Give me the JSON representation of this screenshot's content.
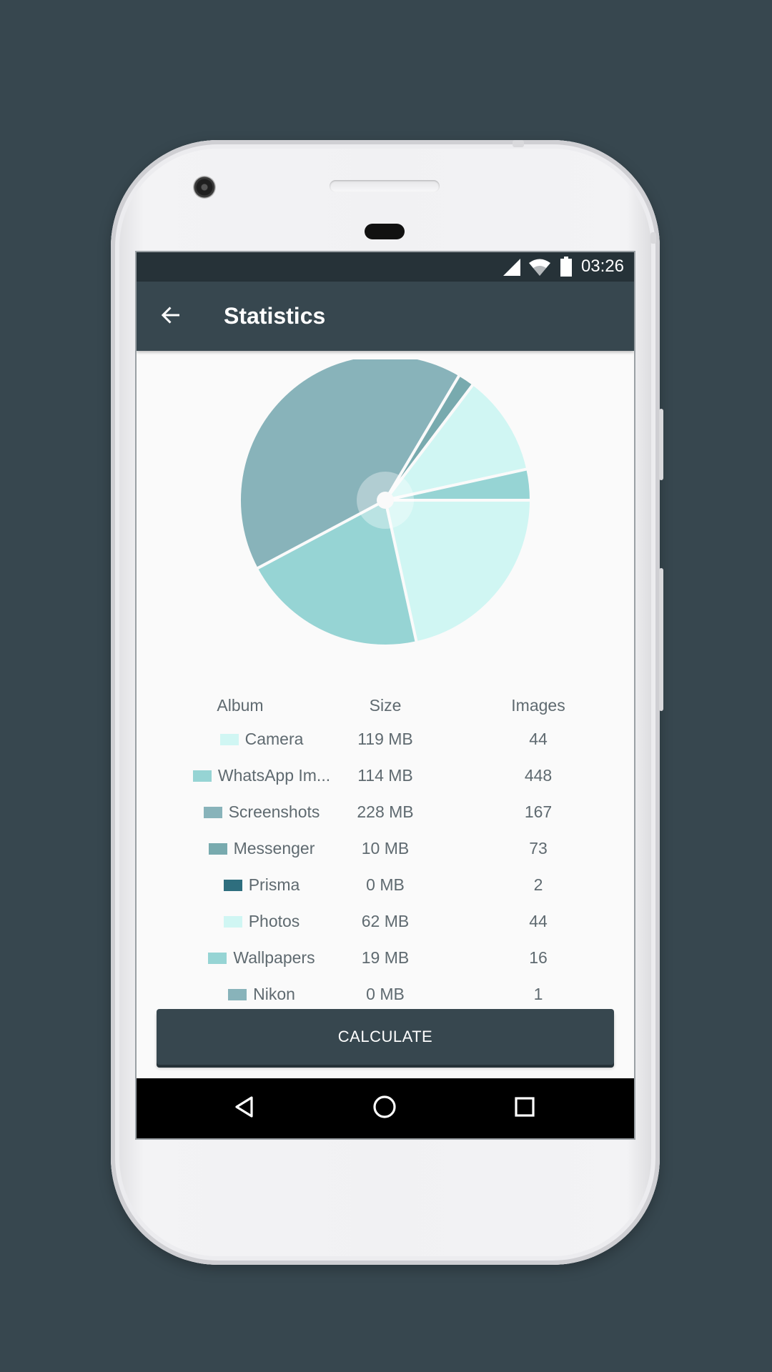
{
  "status_bar": {
    "time": "03:26",
    "icons": [
      "signal-icon",
      "wifi-icon",
      "battery-icon"
    ]
  },
  "app_bar": {
    "title": "Statistics",
    "back_icon": "arrow-back-icon"
  },
  "colors": {
    "background": "#37474f",
    "app_bar": "#37474f",
    "status_bar": "#263238",
    "button": "#37474f"
  },
  "table": {
    "headers": {
      "album": "Album",
      "size": "Size",
      "images": "Images"
    },
    "rows": [
      {
        "album": "Camera",
        "size": "119 MB",
        "images": "44",
        "color": "#d0f6f3"
      },
      {
        "album": "WhatsApp Im...",
        "size": "114 MB",
        "images": "448",
        "color": "#96d4d4"
      },
      {
        "album": "Screenshots",
        "size": "228 MB",
        "images": "167",
        "color": "#88b3ba"
      },
      {
        "album": "Messenger",
        "size": "10 MB",
        "images": "73",
        "color": "#78aaae"
      },
      {
        "album": "Prisma",
        "size": "0 MB",
        "images": "2",
        "color": "#2e6e7e"
      },
      {
        "album": "Photos",
        "size": "62 MB",
        "images": "44",
        "color": "#d0f6f3"
      },
      {
        "album": "Wallpapers",
        "size": "19 MB",
        "images": "16",
        "color": "#96d4d4"
      },
      {
        "album": "Nikon",
        "size": "0 MB",
        "images": "1",
        "color": "#88b3ba"
      }
    ]
  },
  "chart_data": {
    "type": "pie",
    "slices": [
      {
        "label": "Camera",
        "value": 119,
        "color": "#d0f6f3"
      },
      {
        "label": "WhatsApp Im...",
        "value": 114,
        "color": "#96d4d4"
      },
      {
        "label": "Screenshots",
        "value": 228,
        "color": "#88b3ba"
      },
      {
        "label": "Messenger",
        "value": 10,
        "color": "#78aaae"
      },
      {
        "label": "Prisma",
        "value": 0,
        "color": "#2e6e7e"
      },
      {
        "label": "Photos",
        "value": 62,
        "color": "#d0f6f3"
      },
      {
        "label": "Wallpapers",
        "value": 19,
        "color": "#96d4d4"
      },
      {
        "label": "Nikon",
        "value": 0,
        "color": "#88b3ba"
      }
    ]
  },
  "action": {
    "calculate_label": "CALCULATE"
  },
  "nav_bar": {
    "icons": [
      "back-triangle-icon",
      "home-circle-icon",
      "recents-square-icon"
    ]
  }
}
